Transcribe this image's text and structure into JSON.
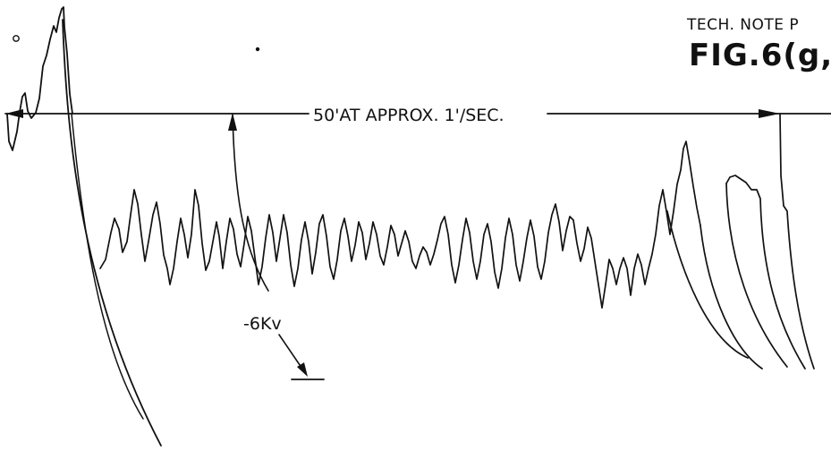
{
  "header": {
    "tech_note": "TECH. NOTE P",
    "figure_label": "FIG.6(g,"
  },
  "annotations": {
    "baseline_label": "50'AT APPROX. 1'/SEC.",
    "voltage_label": "-6Kv"
  }
}
